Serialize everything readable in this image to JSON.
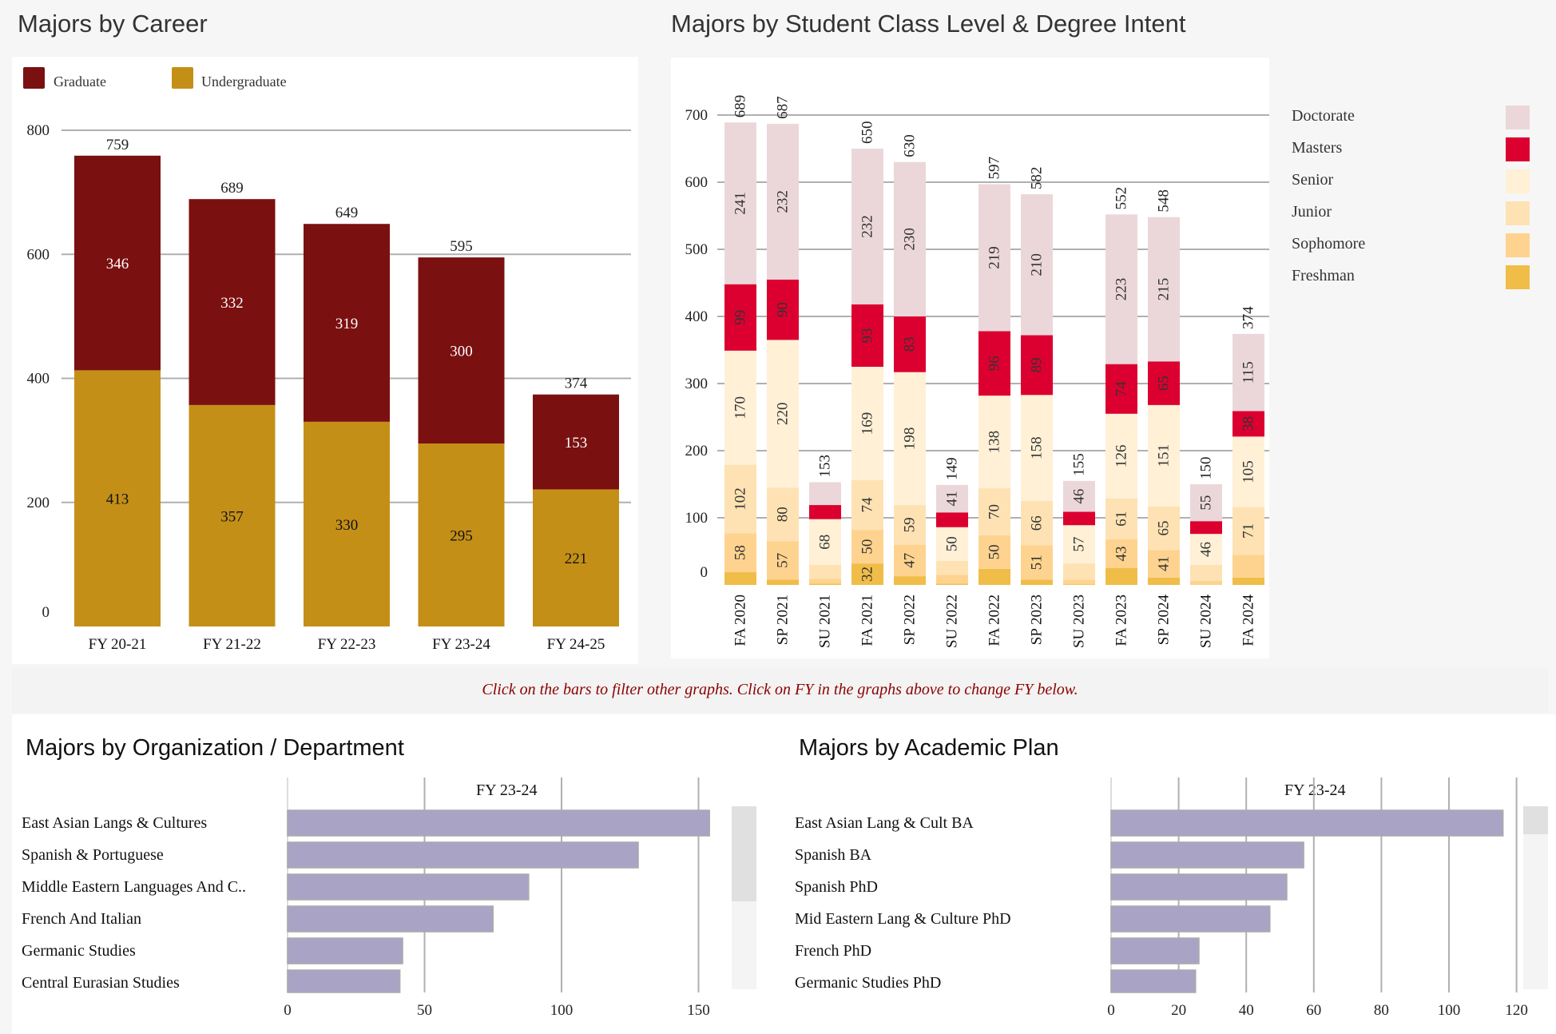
{
  "career": {
    "title": "Majors by Career",
    "legend": [
      {
        "label": "Graduate",
        "color": "#7b1010"
      },
      {
        "label": "Undergraduate",
        "color": "#c48f17"
      }
    ]
  },
  "class_level": {
    "title": "Majors by Student Class Level & Degree Intent"
  },
  "banner": "Click on the bars to filter other graphs. Click on FY in the graphs above to change FY below.",
  "org": {
    "title": "Majors by Organization / Department",
    "fy_label": "FY 23-24",
    "categories": [
      "East Asian Langs & Cultures",
      "Spanish & Portuguese",
      "Middle Eastern Languages And C..",
      "French And Italian",
      "Germanic Studies",
      "Central Eurasian Studies"
    ]
  },
  "plan": {
    "title": "Majors by Academic Plan",
    "fy_label": "FY 23-24",
    "categories": [
      "East Asian Lang & Cult BA",
      "Spanish BA",
      "Spanish PhD",
      "Mid Eastern Lang & Culture PhD",
      "French PhD",
      "Germanic Studies PhD"
    ]
  },
  "chart_data": [
    {
      "type": "bar",
      "stacked": true,
      "title": "Majors by Career",
      "categories": [
        "FY 20-21",
        "FY 21-22",
        "FY 22-23",
        "FY 23-24",
        "FY 24-25"
      ],
      "series": [
        {
          "name": "Undergraduate",
          "color": "#c48f17",
          "values": [
            413,
            357,
            330,
            295,
            221
          ]
        },
        {
          "name": "Graduate",
          "color": "#7b1010",
          "values": [
            346,
            332,
            319,
            300,
            153
          ]
        }
      ],
      "totals": [
        759,
        689,
        649,
        595,
        374
      ],
      "ylim": [
        0,
        800
      ],
      "yticks": [
        0,
        200,
        400,
        600,
        800
      ],
      "legend": "top-left",
      "grid": true
    },
    {
      "type": "bar",
      "stacked": true,
      "title": "Majors by Student Class Level & Degree Intent",
      "categories": [
        "FA 2020",
        "SP 2021",
        "SU 2021",
        "FA 2021",
        "SP 2022",
        "SU 2022",
        "FA 2022",
        "SP 2023",
        "SU 2023",
        "FA 2023",
        "SP 2024",
        "SU 2024",
        "FA 2024"
      ],
      "series": [
        {
          "name": "Freshman",
          "color": "#f0bd48",
          "values": [
            19,
            8,
            2,
            32,
            13,
            2,
            24,
            8,
            1,
            25,
            11,
            0,
            11
          ]
        },
        {
          "name": "Sophomore",
          "color": "#fed38f",
          "values": [
            58,
            57,
            7,
            50,
            47,
            13,
            50,
            51,
            7,
            43,
            41,
            6,
            34
          ]
        },
        {
          "name": "Junior",
          "color": "#fee2b3",
          "values": [
            102,
            80,
            21,
            74,
            59,
            21,
            70,
            66,
            24,
            61,
            65,
            24,
            71
          ]
        },
        {
          "name": "Senior",
          "color": "#fff0d6",
          "values": [
            170,
            220,
            68,
            169,
            198,
            50,
            138,
            158,
            57,
            126,
            151,
            46,
            105
          ]
        },
        {
          "name": "Masters",
          "color": "#dc0030",
          "values": [
            99,
            90,
            21,
            93,
            83,
            22,
            96,
            89,
            20,
            74,
            65,
            19,
            38
          ]
        },
        {
          "name": "Doctorate",
          "color": "#ebd7da",
          "values": [
            241,
            232,
            34,
            232,
            230,
            41,
            219,
            210,
            46,
            223,
            215,
            55,
            115
          ]
        }
      ],
      "totals": [
        689,
        687,
        153,
        650,
        630,
        149,
        597,
        582,
        155,
        552,
        548,
        150,
        374
      ],
      "label_min": 38,
      "extra_labels": [
        [
          "Freshman",
          "FA 2021"
        ]
      ],
      "ylim": [
        0,
        700
      ],
      "yticks": [
        0,
        100,
        200,
        300,
        400,
        500,
        600,
        700
      ],
      "legend": "right",
      "grid": true
    },
    {
      "type": "bar",
      "orientation": "horizontal",
      "title": "Majors by Organization / Department",
      "subtitle": "FY 23-24",
      "categories": [
        "East Asian Langs & Cultures",
        "Spanish & Portuguese",
        "Middle Eastern Languages And C..",
        "French And Italian",
        "Germanic Studies",
        "Central Eurasian Studies"
      ],
      "values": [
        154,
        128,
        88,
        75,
        42,
        41
      ],
      "color": "#a9a4c5",
      "xlim": [
        0,
        155
      ],
      "xticks": [
        0,
        50,
        100,
        150
      ]
    },
    {
      "type": "bar",
      "orientation": "horizontal",
      "title": "Majors by Academic Plan",
      "subtitle": "FY 23-24",
      "categories": [
        "East Asian Lang & Cult BA",
        "Spanish BA",
        "Spanish PhD",
        "Mid Eastern Lang & Culture PhD",
        "French PhD",
        "Germanic Studies PhD"
      ],
      "values": [
        116,
        57,
        52,
        47,
        26,
        25
      ],
      "color": "#a9a4c5",
      "xlim": [
        0,
        120
      ],
      "xticks": [
        0,
        20,
        40,
        60,
        80,
        100,
        120
      ]
    }
  ]
}
